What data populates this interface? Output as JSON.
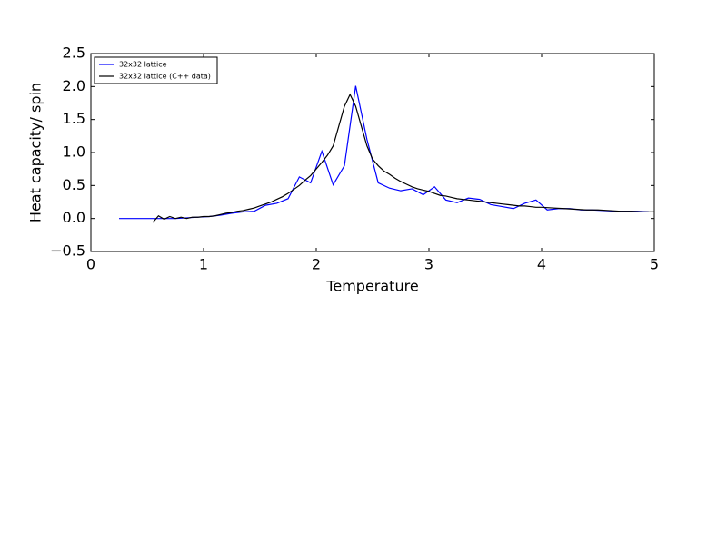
{
  "chart_data": {
    "type": "line",
    "xlabel": "Temperature",
    "ylabel": "Heat capacity/ spin",
    "xlim": [
      0,
      5
    ],
    "ylim": [
      -0.5,
      2.5
    ],
    "xticks": [
      0,
      1,
      2,
      3,
      4,
      5
    ],
    "yticks": [
      {
        "value": -0.5,
        "label": "−0.5"
      },
      {
        "value": 0,
        "label": "0.0"
      },
      0.5,
      {
        "value": 1,
        "label": "1.0"
      },
      1.5,
      {
        "value": 2,
        "label": "2.0"
      },
      2.5
    ],
    "legend": "upper left",
    "series": [
      {
        "name": "32x32 lattice",
        "color": "#0000ff",
        "x": [
          0.25,
          0.35,
          0.45,
          0.55,
          0.65,
          0.75,
          0.85,
          0.95,
          1.05,
          1.15,
          1.25,
          1.35,
          1.45,
          1.55,
          1.65,
          1.75,
          1.85,
          1.95,
          2.05,
          2.15,
          2.25,
          2.35,
          2.45,
          2.55,
          2.65,
          2.75,
          2.85,
          2.95,
          3.05,
          3.15,
          3.25,
          3.35,
          3.45,
          3.55,
          3.65,
          3.75,
          3.85,
          3.95,
          4.05,
          4.15,
          4.25,
          4.35,
          4.45,
          4.55,
          4.65,
          4.75,
          4.85,
          4.95
        ],
        "values": [
          0,
          0,
          0,
          0,
          0,
          0,
          0.01,
          0.02,
          0.03,
          0.05,
          0.08,
          0.1,
          0.11,
          0.2,
          0.23,
          0.3,
          0.63,
          0.54,
          1.02,
          0.51,
          0.8,
          2.01,
          1.2,
          0.54,
          0.46,
          0.42,
          0.45,
          0.36,
          0.48,
          0.28,
          0.24,
          0.31,
          0.29,
          0.21,
          0.18,
          0.15,
          0.23,
          0.28,
          0.13,
          0.15,
          0.15,
          0.13,
          0.13,
          0.12,
          0.11,
          0.11,
          0.11,
          0.1
        ]
      },
      {
        "name": "32x32 lattice (C++ data)",
        "color": "#000000",
        "x": [
          0.55,
          0.6,
          0.65,
          0.7,
          0.75,
          0.8,
          0.85,
          0.9,
          0.95,
          1.0,
          1.05,
          1.1,
          1.15,
          1.2,
          1.25,
          1.3,
          1.35,
          1.4,
          1.45,
          1.5,
          1.55,
          1.6,
          1.65,
          1.7,
          1.75,
          1.8,
          1.85,
          1.9,
          1.95,
          2.0,
          2.05,
          2.1,
          2.15,
          2.2,
          2.25,
          2.3,
          2.35,
          2.4,
          2.45,
          2.5,
          2.55,
          2.6,
          2.65,
          2.7,
          2.75,
          2.8,
          2.85,
          2.9,
          2.95,
          3.0,
          3.05,
          3.1,
          3.15,
          3.2,
          3.25,
          3.3,
          3.35,
          3.4,
          3.45,
          3.5,
          3.55,
          3.6,
          3.65,
          3.7,
          3.75,
          3.8,
          3.85,
          3.9,
          3.95,
          4.0,
          4.1,
          4.2,
          4.3,
          4.4,
          4.5,
          4.6,
          4.7,
          4.8,
          4.9,
          5.0
        ],
        "values": [
          -0.06,
          0.04,
          -0.01,
          0.03,
          0,
          0.02,
          0,
          0.02,
          0.02,
          0.03,
          0.03,
          0.04,
          0.06,
          0.08,
          0.09,
          0.11,
          0.12,
          0.14,
          0.16,
          0.19,
          0.22,
          0.25,
          0.29,
          0.33,
          0.38,
          0.44,
          0.5,
          0.58,
          0.65,
          0.75,
          0.85,
          0.96,
          1.1,
          1.4,
          1.7,
          1.88,
          1.7,
          1.4,
          1.1,
          0.9,
          0.8,
          0.72,
          0.67,
          0.61,
          0.56,
          0.52,
          0.48,
          0.45,
          0.43,
          0.41,
          0.38,
          0.35,
          0.34,
          0.32,
          0.3,
          0.29,
          0.28,
          0.27,
          0.26,
          0.25,
          0.24,
          0.23,
          0.22,
          0.21,
          0.2,
          0.19,
          0.19,
          0.18,
          0.17,
          0.17,
          0.16,
          0.15,
          0.14,
          0.13,
          0.13,
          0.12,
          0.11,
          0.11,
          0.1,
          0.1
        ]
      }
    ]
  }
}
